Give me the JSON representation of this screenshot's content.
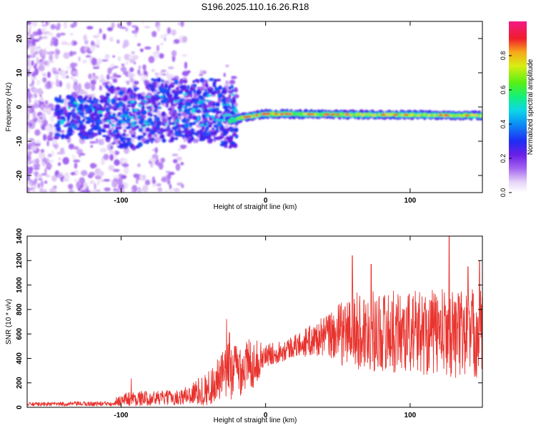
{
  "title": "S196.2025.110.16.26.R18",
  "chart_data": [
    {
      "type": "heatmap",
      "xlabel": "Height of straight line (km)",
      "ylabel": "Frequency (Hz)",
      "xlim": [
        -165,
        150
      ],
      "ylim": [
        -25,
        25
      ],
      "xticks": [
        -100,
        0,
        100
      ],
      "yticks": [
        -20,
        -10,
        0,
        10,
        20
      ],
      "grid": false,
      "colorbar": {
        "label": "Normalized spectral amplitude",
        "range": [
          0,
          1
        ],
        "ticks": [
          0.0,
          0.2,
          0.4,
          0.6,
          0.8
        ],
        "tick_labels": [
          "0.0",
          "0.2",
          "0.4",
          "0.6",
          "0.8"
        ]
      },
      "description_values": {
        "ridge_frequency_hz": [
          {
            "x": -25,
            "y": -4
          },
          {
            "x": -15,
            "y": -3
          },
          {
            "x": 0,
            "y": -2
          },
          {
            "x": 50,
            "y": -2.2
          },
          {
            "x": 100,
            "y": -2.3
          },
          {
            "x": 150,
            "y": -2.5
          }
        ]
      }
    },
    {
      "type": "line",
      "xlabel": "Height of straight line (km)",
      "ylabel": "SNR (10 * v/v)",
      "xlim": [
        -165,
        150
      ],
      "ylim": [
        0,
        1400
      ],
      "xticks": [
        -100,
        0,
        100
      ],
      "yticks": [
        0,
        200,
        400,
        600,
        800,
        1000,
        1200,
        1400
      ],
      "color": "#e8332e",
      "grid": false,
      "series": [
        {
          "envelope": [
            {
              "x": -165,
              "mean": 25,
              "amp": 15
            },
            {
              "x": -110,
              "mean": 30,
              "amp": 20
            },
            {
              "x": -95,
              "mean": 70,
              "amp": 60
            },
            {
              "x": -60,
              "mean": 80,
              "amp": 60
            },
            {
              "x": -40,
              "mean": 150,
              "amp": 140
            },
            {
              "x": -25,
              "mean": 300,
              "amp": 240
            },
            {
              "x": -10,
              "mean": 350,
              "amp": 220
            },
            {
              "x": 0,
              "mean": 420,
              "amp": 90
            },
            {
              "x": 20,
              "mean": 500,
              "amp": 90
            },
            {
              "x": 40,
              "mean": 580,
              "amp": 160
            },
            {
              "x": 60,
              "mean": 620,
              "amp": 320
            },
            {
              "x": 100,
              "mean": 620,
              "amp": 340
            },
            {
              "x": 150,
              "mean": 600,
              "amp": 380
            }
          ],
          "peaks": [
            {
              "x": -93,
              "y": 235
            },
            {
              "x": -27,
              "y": 720
            },
            {
              "x": -25,
              "y": 610
            },
            {
              "x": 60,
              "y": 1240
            },
            {
              "x": 73,
              "y": 1170
            },
            {
              "x": 127,
              "y": 1400
            },
            {
              "x": 140,
              "y": 1150
            },
            {
              "x": 148,
              "y": 1200
            }
          ]
        }
      ]
    }
  ]
}
